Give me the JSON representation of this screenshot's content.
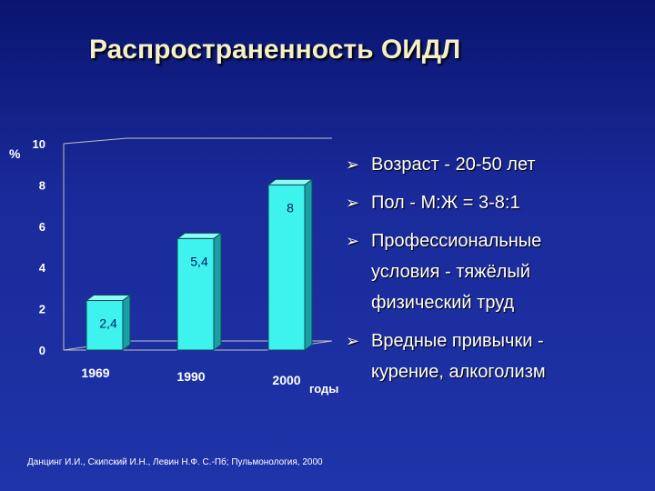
{
  "title": "Распространенность ОИДЛ",
  "chart_data": {
    "type": "bar",
    "ylabel": "%",
    "xlabel": "годы",
    "categories": [
      "1969",
      "1990",
      "2000"
    ],
    "values": [
      2.4,
      5.4,
      8
    ],
    "value_labels": [
      "2,4",
      "5,4",
      "8"
    ],
    "ylim": [
      0,
      10
    ],
    "yticks": [
      "0",
      "2",
      "4",
      "6",
      "8",
      "10"
    ],
    "grid": false,
    "colors": {
      "bar_front": "#3ef2ee",
      "bar_side": "#1a9fa4",
      "axis": "#c0c0c0",
      "text": "#ffffff"
    }
  },
  "bullets": [
    {
      "lines": [
        "Возраст - 20-50 лет"
      ]
    },
    {
      "lines": [
        "Пол - М:Ж = 3-8:1"
      ]
    },
    {
      "lines": [
        "Профессиональные",
        "условия - тяжёлый",
        "физический труд"
      ]
    },
    {
      "lines": [
        "Вредные привычки -",
        "курение,  алкоголизм"
      ]
    }
  ],
  "bullet_icon": "arrow-right-icon",
  "source": "Данцинг И.И., Скипский И.Н., Левин Н.Ф. С.-Пб; Пульмонология, 2000"
}
